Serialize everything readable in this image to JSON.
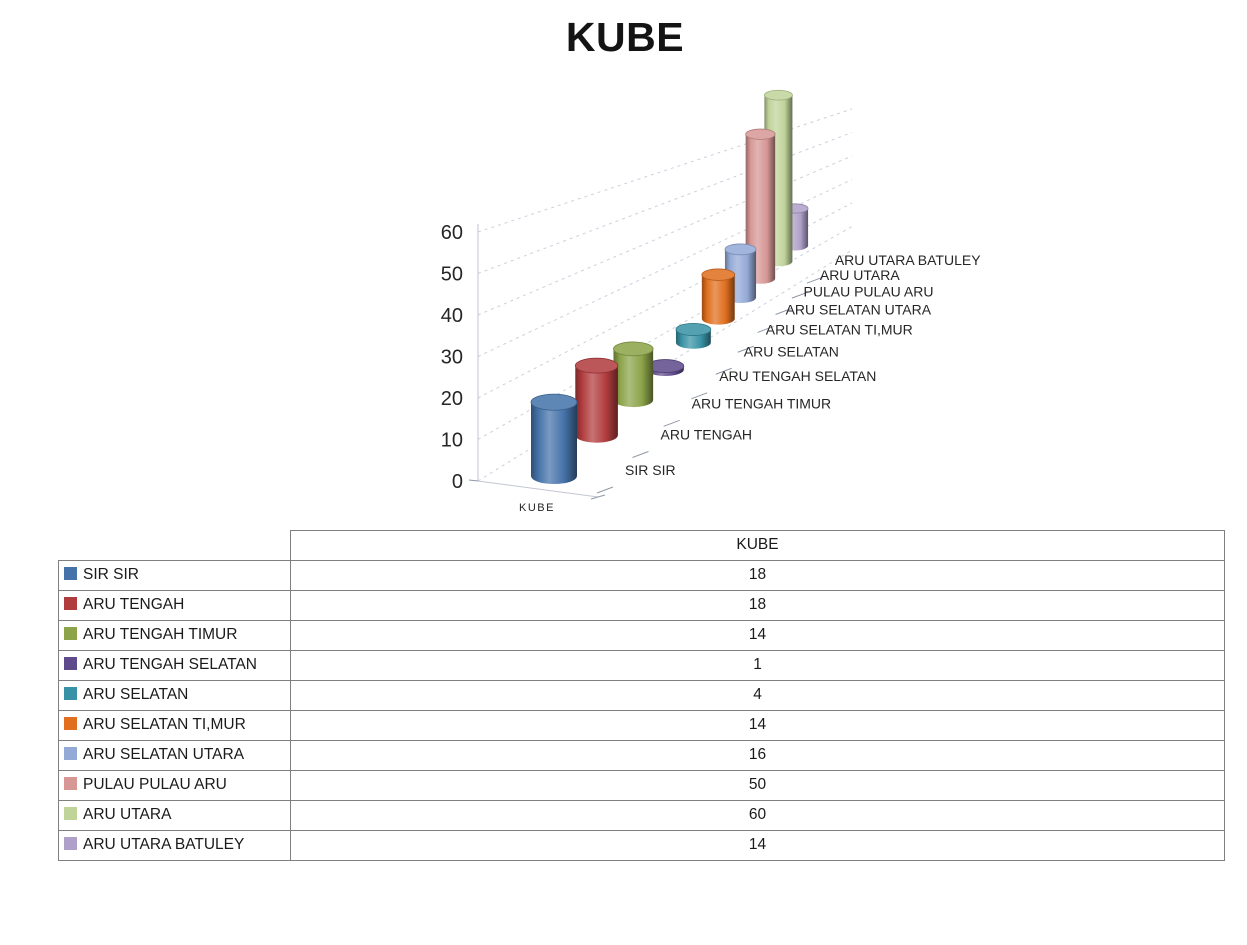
{
  "title": "KUBE",
  "chart_data": {
    "type": "bar",
    "subtype": "3d-cylinder",
    "title": "KUBE",
    "xlabel": "KUBE",
    "ylabel": "",
    "categories": [
      "SIR SIR",
      "ARU TENGAH",
      "ARU TENGAH TIMUR",
      "ARU TENGAH SELATAN",
      "ARU SELATAN",
      "ARU SELATAN TI,MUR",
      "ARU SELATAN UTARA",
      "PULAU PULAU ARU",
      "ARU UTARA",
      "ARU UTARA BATULEY"
    ],
    "series": [
      {
        "name": "KUBE",
        "values": [
          18,
          18,
          14,
          1,
          4,
          14,
          16,
          50,
          60,
          14
        ]
      }
    ],
    "values": [
      18,
      18,
      14,
      1,
      4,
      14,
      16,
      50,
      60,
      14
    ],
    "colors": [
      "#4573A9",
      "#B13C3E",
      "#8CA349",
      "#5F4B8B",
      "#3892A5",
      "#E06F1F",
      "#93A9D6",
      "#D69795",
      "#C0D49A",
      "#AFA0C9"
    ],
    "ylim": [
      0,
      60
    ],
    "yticks": [
      0,
      10,
      20,
      30,
      40,
      50,
      60
    ],
    "grid": "dashed",
    "legend_position": "none"
  },
  "table": {
    "header": "KUBE",
    "rows": [
      {
        "label": "SIR SIR",
        "value": "18",
        "color": "#4573A9"
      },
      {
        "label": "ARU TENGAH",
        "value": "18",
        "color": "#B13C3E"
      },
      {
        "label": "ARU TENGAH TIMUR",
        "value": "14",
        "color": "#8CA349"
      },
      {
        "label": "ARU TENGAH SELATAN",
        "value": "1",
        "color": "#5F4B8B"
      },
      {
        "label": "ARU SELATAN",
        "value": "4",
        "color": "#3892A5"
      },
      {
        "label": "ARU SELATAN TI,MUR",
        "value": "14",
        "color": "#E06F1F"
      },
      {
        "label": "ARU SELATAN UTARA",
        "value": "16",
        "color": "#93A9D6"
      },
      {
        "label": "PULAU PULAU ARU",
        "value": "50",
        "color": "#D69795"
      },
      {
        "label": "ARU UTARA",
        "value": "60",
        "color": "#C0D49A"
      },
      {
        "label": "ARU UTARA BATULEY",
        "value": "14",
        "color": "#AFA0C9"
      }
    ]
  }
}
